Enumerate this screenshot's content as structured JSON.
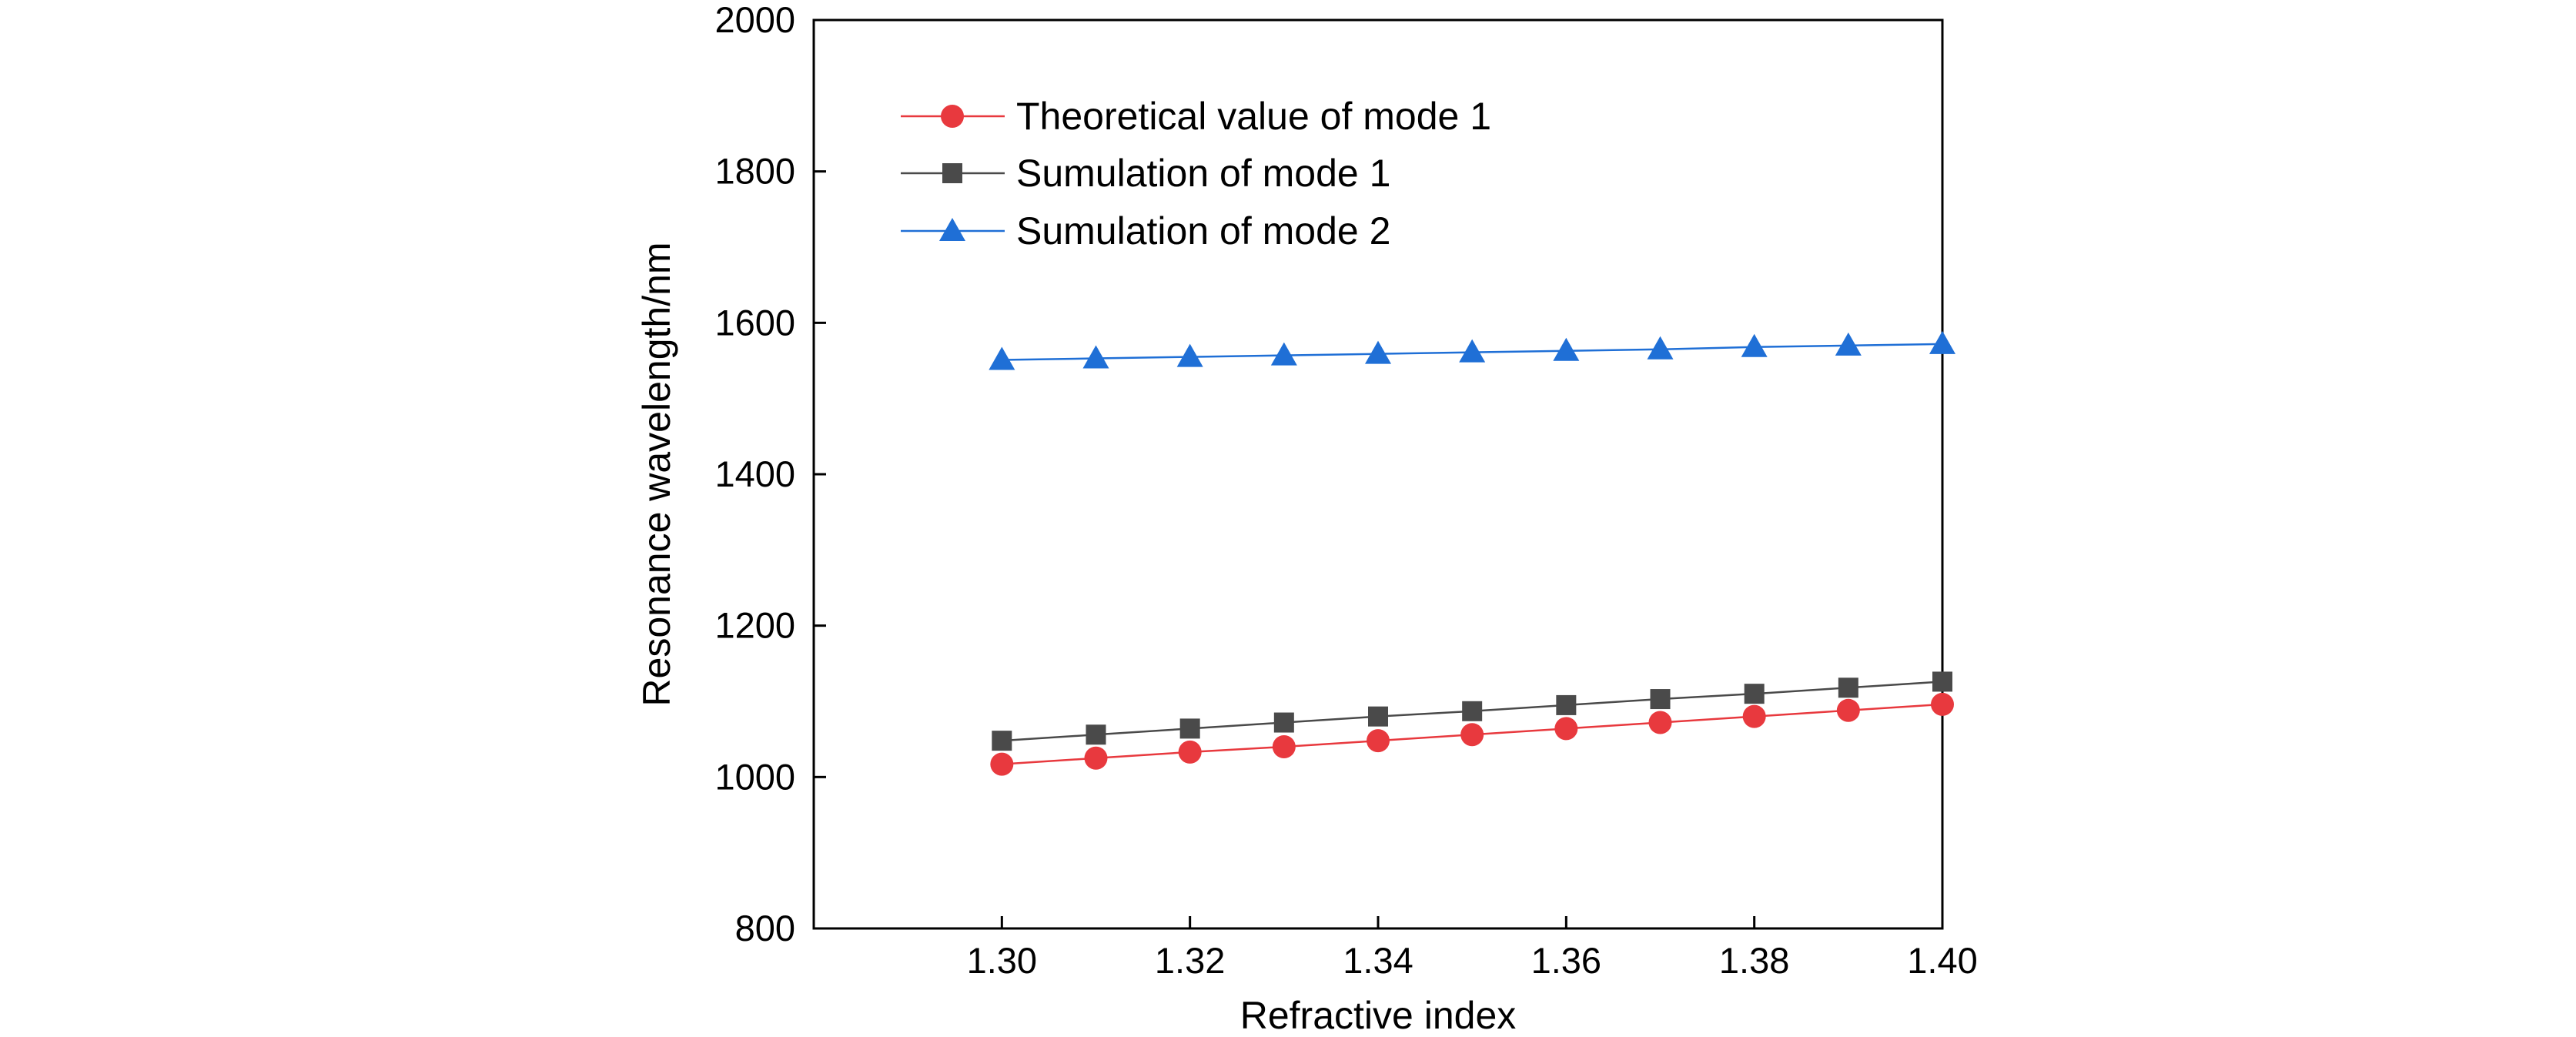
{
  "chart_data": {
    "type": "line",
    "title": "",
    "xlabel": "Refractive index",
    "ylabel": "Resonance wavelength/nm",
    "xlim": [
      1.28,
      1.4
    ],
    "ylim": [
      800,
      2000
    ],
    "x": [
      1.3,
      1.31,
      1.32,
      1.33,
      1.34,
      1.35,
      1.36,
      1.37,
      1.38,
      1.39,
      1.4
    ],
    "x_ticks": [
      "1.30",
      "1.32",
      "1.34",
      "1.36",
      "1.38",
      "1.40"
    ],
    "y_ticks": [
      "800",
      "1000",
      "1200",
      "1400",
      "1600",
      "1800",
      "2000"
    ],
    "grid": false,
    "legend_position": "top-left",
    "series": [
      {
        "name": "Theoretical value of mode 1",
        "marker": "circle",
        "color": "#e8393e",
        "values": [
          1017,
          1025,
          1033,
          1040,
          1048,
          1056,
          1064,
          1072,
          1080,
          1088,
          1096
        ]
      },
      {
        "name": "Sumulation of mode 1",
        "marker": "square",
        "color": "#4a4a4a",
        "values": [
          1048,
          1056,
          1064,
          1072,
          1080,
          1087,
          1095,
          1103,
          1110,
          1118,
          1126
        ]
      },
      {
        "name": "Sumulation of mode 2",
        "marker": "triangle",
        "color": "#1f6fd6",
        "values": [
          1551,
          1553,
          1555,
          1557,
          1559,
          1561,
          1563,
          1565,
          1568,
          1570,
          1572
        ]
      }
    ]
  }
}
